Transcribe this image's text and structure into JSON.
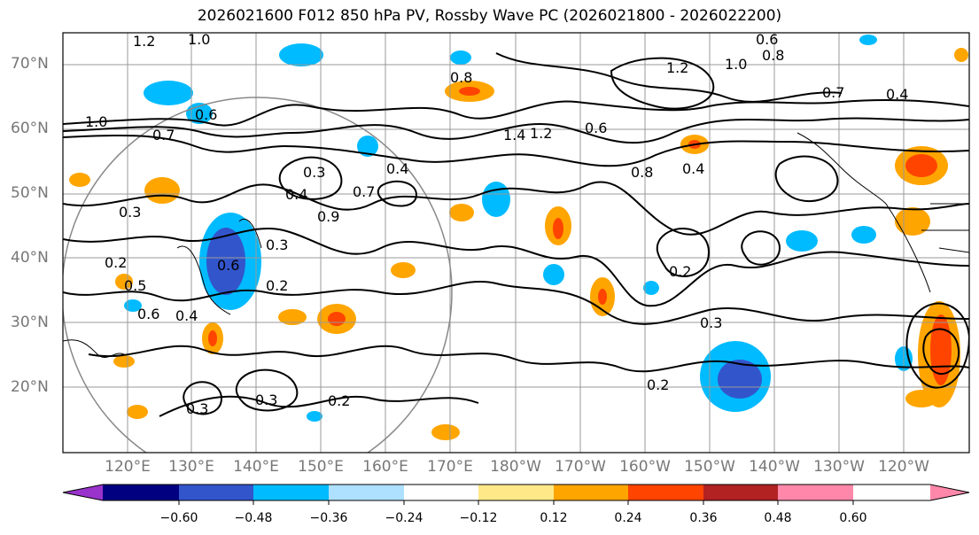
{
  "title": "2026021600 F012 850 hPa PV, Rossby Wave PC (2026021800 - 2026022200)",
  "lat_labels": [
    "70°N",
    "60°N",
    "50°N",
    "40°N",
    "30°N",
    "20°N"
  ],
  "lon_labels": [
    "120°E",
    "130°E",
    "140°E",
    "150°E",
    "160°E",
    "170°E",
    "180°W",
    "170°W",
    "160°W",
    "150°W",
    "140°W",
    "130°W",
    "120°W"
  ],
  "contour_labels": [
    "1.2",
    "1.0",
    "0.6",
    "0.8",
    "0.8",
    "1.2",
    "1.0",
    "0.7",
    "0.4",
    "1.0",
    "0.7",
    "0.6",
    "1.4",
    "1.2",
    "0.6",
    "0.4",
    "0.3",
    "0.7",
    "0.4",
    "0.9",
    "0.8",
    "0.4",
    "0.3",
    "0.6",
    "0.3",
    "0.2",
    "0.2",
    "0.6",
    "0.4",
    "0.3",
    "0.2",
    "0.3",
    "0.3",
    "0.2",
    "0.2",
    "0.5"
  ],
  "colorbar": {
    "ticks": [
      "−0.60",
      "−0.48",
      "−0.36",
      "−0.24",
      "−0.12",
      "0.12",
      "0.24",
      "0.36",
      "0.48",
      "0.60"
    ],
    "colors": [
      "#9933cc",
      "#000080",
      "#3355cc",
      "#00bbff",
      "#aee0ff",
      "#ffffff",
      "#ffe888",
      "#ffa500",
      "#ff4400",
      "#b22222",
      "#ff88aa"
    ]
  },
  "fill_colors": {
    "orange": "#ffa500",
    "red": "#ff4400",
    "lightblue": "#00bbff",
    "blue": "#3355cc",
    "yellow": "#ffe888",
    "pale_blue": "#aee0ff"
  }
}
